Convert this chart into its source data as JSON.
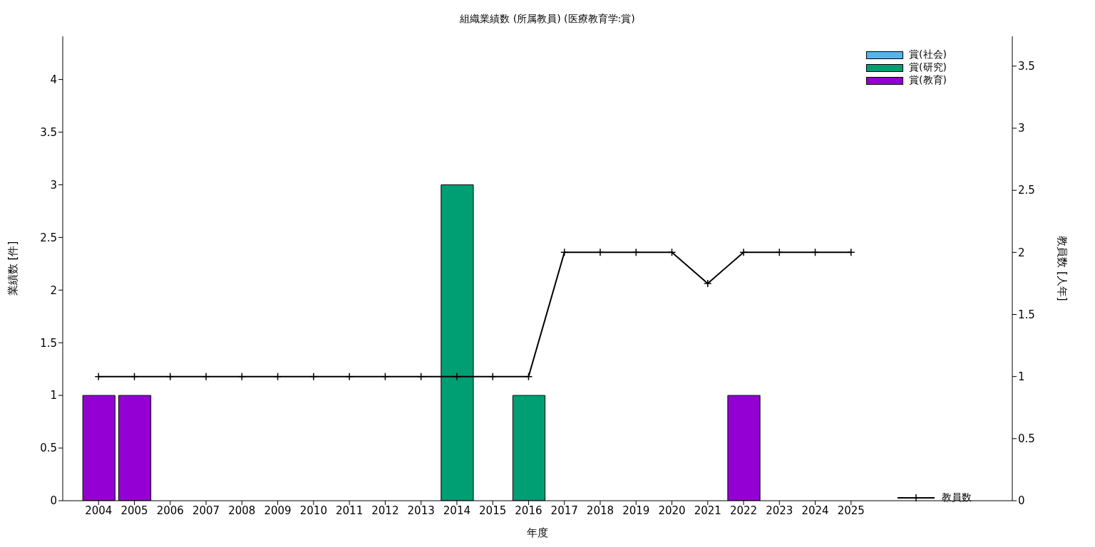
{
  "chart_data": {
    "type": "bar",
    "title": "組織業績数 (所属教員) (医療教育学:賞)",
    "xlabel": "年度",
    "ylabel": "業績数 [件]",
    "y2label": "教員数 [人年]",
    "x": [
      2004,
      2005,
      2006,
      2007,
      2008,
      2009,
      2010,
      2011,
      2012,
      2013,
      2014,
      2015,
      2016,
      2017,
      2018,
      2019,
      2020,
      2021,
      2022,
      2023,
      2024,
      2025
    ],
    "xlim": [
      2003,
      2029.5
    ],
    "xticks": [
      2004,
      2005,
      2006,
      2007,
      2008,
      2009,
      2010,
      2011,
      2012,
      2013,
      2014,
      2015,
      2016,
      2017,
      2018,
      2019,
      2020,
      2021,
      2022,
      2023,
      2024,
      2025
    ],
    "ylim": [
      0,
      4.41
    ],
    "yticks": [
      0,
      0.5,
      1,
      1.5,
      2,
      2.5,
      3,
      3.5,
      4
    ],
    "y2lim": [
      0,
      3.74
    ],
    "y2ticks": [
      0,
      0.5,
      1,
      1.5,
      2,
      2.5,
      3,
      3.5
    ],
    "stacked": true,
    "legend": "right",
    "series": [
      {
        "name": "賞(社会)",
        "color": "#56b4e9",
        "values": [
          0,
          0,
          0,
          0,
          0,
          0,
          0,
          0,
          0,
          0,
          0,
          0,
          0,
          0,
          0,
          0,
          0,
          0,
          0,
          0,
          0,
          0
        ]
      },
      {
        "name": "賞(研究)",
        "color": "#009e73",
        "values": [
          0,
          0,
          0,
          0,
          0,
          0,
          0,
          0,
          0,
          0,
          3,
          0,
          1,
          0,
          0,
          0,
          0,
          0,
          0,
          0,
          0,
          0
        ]
      },
      {
        "name": "賞(教育)",
        "color": "#9400d3",
        "values": [
          1,
          1,
          0,
          0,
          0,
          0,
          0,
          0,
          0,
          0,
          0,
          0,
          0,
          0,
          0,
          0,
          0,
          0,
          1,
          0,
          0,
          0
        ]
      },
      {
        "name": "教員数",
        "type": "line",
        "axis": "y2",
        "color": "#000000",
        "marker": "cross",
        "values": [
          1,
          1,
          1,
          1,
          1,
          1,
          1,
          1,
          1,
          1,
          1,
          1,
          1,
          2,
          2,
          2,
          2,
          1.75,
          2,
          2,
          2,
          2
        ]
      }
    ]
  }
}
